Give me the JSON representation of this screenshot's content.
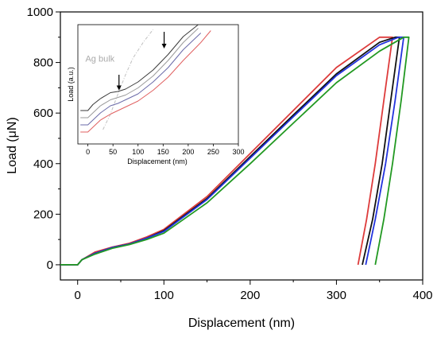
{
  "chart_data": [
    {
      "type": "line",
      "xlabel": "Displacement (nm)",
      "ylabel": "Load (μN)",
      "xlim": [
        -20,
        400
      ],
      "ylim": [
        -60,
        1000
      ],
      "xticks": [
        0,
        100,
        200,
        300,
        400
      ],
      "yticks": [
        0,
        200,
        400,
        600,
        800,
        1000
      ],
      "grid": false,
      "legend": "none",
      "series": [
        {
          "color": "#dd3b3b",
          "x": [
            -20,
            0,
            5,
            20,
            40,
            60,
            80,
            100,
            150,
            200,
            250,
            300,
            350,
            360,
            365,
            355,
            345,
            335,
            325
          ],
          "y": [
            0,
            0,
            20,
            50,
            70,
            85,
            110,
            140,
            270,
            440,
            610,
            780,
            900,
            900,
            900,
            650,
            400,
            180,
            0
          ]
        },
        {
          "color": "#111111",
          "x": [
            -20,
            0,
            5,
            20,
            40,
            60,
            80,
            100,
            150,
            200,
            250,
            300,
            350,
            368,
            373,
            363,
            353,
            342,
            330
          ],
          "y": [
            0,
            0,
            20,
            45,
            68,
            82,
            105,
            135,
            262,
            428,
            592,
            755,
            880,
            900,
            900,
            650,
            400,
            180,
            0
          ]
        },
        {
          "color": "#2233dd",
          "x": [
            -20,
            0,
            5,
            20,
            40,
            60,
            80,
            100,
            150,
            200,
            250,
            300,
            350,
            372,
            378,
            368,
            357,
            345,
            334
          ],
          "y": [
            0,
            0,
            20,
            45,
            68,
            82,
            105,
            132,
            258,
            422,
            585,
            748,
            870,
            900,
            900,
            650,
            400,
            180,
            0
          ]
        },
        {
          "color": "#229922",
          "x": [
            -20,
            0,
            5,
            20,
            40,
            60,
            80,
            100,
            150,
            200,
            250,
            300,
            350,
            378,
            384,
            375,
            365,
            355,
            345
          ],
          "y": [
            0,
            0,
            20,
            42,
            65,
            80,
            100,
            125,
            245,
            400,
            560,
            720,
            845,
            900,
            900,
            650,
            400,
            180,
            0
          ]
        }
      ]
    },
    {
      "type": "line",
      "xlabel": "Displacement (nm)",
      "ylabel": "Load (a.u.)",
      "xlim": [
        -20,
        300
      ],
      "ylim": [
        0,
        100
      ],
      "xticks": [
        0,
        50,
        100,
        150,
        200,
        250,
        300
      ],
      "grid": false,
      "annotations": [
        {
          "text": "Ag bulk",
          "x": -5,
          "y": 69
        },
        {
          "type": "arrow",
          "x": 62,
          "y_from": 58,
          "y_to": 45
        },
        {
          "type": "arrow",
          "x": 152,
          "y_from": 94,
          "y_to": 80
        }
      ],
      "series": [
        {
          "color": "#c0c0c0",
          "dashed": true,
          "x": [
            30,
            45,
            60,
            75,
            90,
            110,
            130
          ],
          "y": [
            12,
            25,
            42,
            58,
            72,
            85,
            96
          ]
        },
        {
          "color": "#3a3a3a",
          "x": [
            -15,
            0,
            10,
            25,
            45,
            60,
            75,
            100,
            130,
            160,
            190,
            220
          ],
          "y": [
            28,
            28,
            33,
            38,
            43,
            44,
            46,
            52,
            62,
            75,
            90,
            100
          ]
        },
        {
          "color": "#9a9a9a",
          "x": [
            -15,
            0,
            10,
            25,
            45,
            60,
            75,
            100,
            130,
            160,
            190,
            220
          ],
          "y": [
            22,
            22,
            26,
            32,
            37,
            39,
            41,
            47,
            57,
            70,
            85,
            97
          ]
        },
        {
          "color": "#6a6aa8",
          "x": [
            -15,
            0,
            10,
            25,
            45,
            60,
            75,
            100,
            130,
            160,
            190,
            225
          ],
          "y": [
            16,
            16,
            20,
            26,
            32,
            34,
            37,
            42,
            52,
            64,
            79,
            93
          ]
        },
        {
          "color": "#e06060",
          "x": [
            -15,
            0,
            10,
            25,
            45,
            60,
            75,
            100,
            130,
            160,
            190,
            225,
            245
          ],
          "y": [
            10,
            10,
            14,
            20,
            25,
            28,
            31,
            36,
            45,
            56,
            70,
            85,
            95
          ]
        }
      ]
    }
  ]
}
